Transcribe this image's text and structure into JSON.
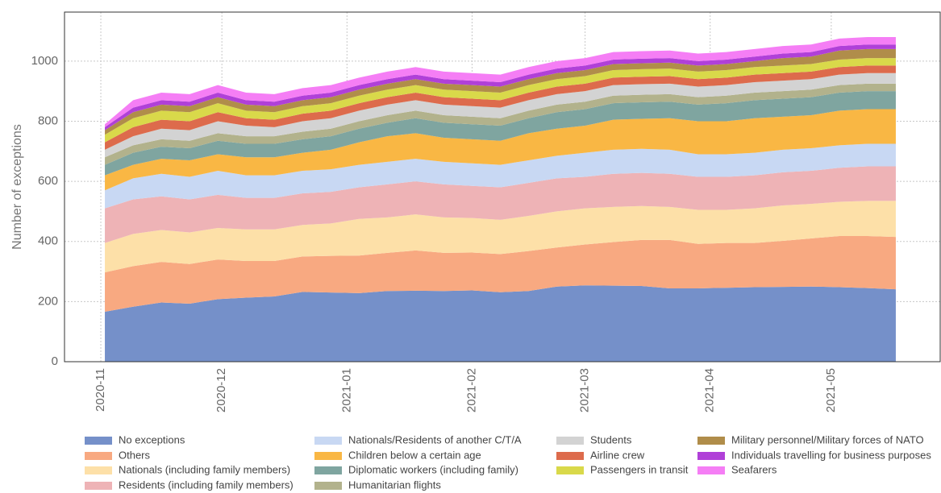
{
  "chart_data": {
    "type": "stacked-area",
    "y_label": "Number of exceptions",
    "x": [
      1,
      8,
      15,
      22,
      29,
      36,
      43,
      50,
      57,
      64,
      71,
      78,
      85,
      92,
      99,
      106,
      113,
      120,
      127,
      134,
      141,
      148,
      155,
      162,
      169,
      176,
      183,
      190,
      197
    ],
    "xlim": [
      -9,
      208
    ],
    "xticks": [
      {
        "value": 0,
        "label": "2020-11"
      },
      {
        "value": 30,
        "label": "2020-12"
      },
      {
        "value": 61,
        "label": "2021-01"
      },
      {
        "value": 92,
        "label": "2021-02"
      },
      {
        "value": 120,
        "label": "2021-03"
      },
      {
        "value": 151,
        "label": "2021-04"
      },
      {
        "value": 181,
        "label": "2021-05"
      }
    ],
    "ylim": [
      0,
      1163
    ],
    "yticks": [
      0,
      200,
      400,
      600,
      800,
      1000
    ],
    "grid": true,
    "legend": "bottom",
    "series": [
      {
        "name": "No exceptions",
        "color": "#7590c9",
        "values": [
          166,
          183,
          197,
          193,
          208,
          213,
          217,
          232,
          230,
          228,
          235,
          236,
          235,
          237,
          231,
          235,
          250,
          254,
          253,
          252,
          244,
          244,
          246,
          248,
          249,
          250,
          248,
          245,
          241
        ]
      },
      {
        "name": "Others",
        "color": "#f8a981",
        "values": [
          131,
          135,
          135,
          132,
          132,
          122,
          118,
          118,
          122,
          125,
          127,
          134,
          127,
          126,
          127,
          133,
          130,
          136,
          145,
          153,
          161,
          148,
          149,
          147,
          153,
          160,
          170,
          173,
          174
        ]
      },
      {
        "name": "Nationals (including family members)",
        "color": "#fde0a8",
        "values": [
          98,
          107,
          106,
          105,
          105,
          105,
          105,
          105,
          108,
          122,
          118,
          120,
          118,
          115,
          114,
          117,
          120,
          120,
          117,
          113,
          110,
          113,
          110,
          115,
          118,
          115,
          114,
          117,
          120
        ]
      },
      {
        "name": "Residents (including family members)",
        "color": "#eeb3b6",
        "values": [
          115,
          115,
          112,
          110,
          110,
          105,
          105,
          105,
          105,
          105,
          110,
          110,
          110,
          107,
          108,
          110,
          110,
          105,
          110,
          110,
          110,
          110,
          110,
          110,
          110,
          110,
          113,
          115,
          115
        ]
      },
      {
        "name": "Nationals/Residents of another C/T/A",
        "color": "#c8d8f3",
        "values": [
          60,
          70,
          75,
          75,
          80,
          75,
          75,
          75,
          75,
          75,
          75,
          75,
          75,
          75,
          75,
          75,
          75,
          80,
          80,
          80,
          80,
          75,
          75,
          75,
          75,
          75,
          75,
          75,
          75
        ]
      },
      {
        "name": "Children below a certain age",
        "color": "#f9b744",
        "values": [
          50,
          45,
          50,
          55,
          55,
          60,
          60,
          60,
          65,
          75,
          85,
          85,
          80,
          80,
          80,
          90,
          90,
          90,
          100,
          100,
          105,
          110,
          110,
          115,
          110,
          110,
          115,
          115,
          115
        ]
      },
      {
        "name": "Diplomatic workers (including family)",
        "color": "#7fa5a0",
        "values": [
          35,
          40,
          40,
          40,
          45,
          45,
          45,
          45,
          45,
          45,
          45,
          50,
          50,
          50,
          50,
          50,
          55,
          55,
          55,
          55,
          55,
          55,
          60,
          60,
          60,
          60,
          60,
          60,
          60
        ]
      },
      {
        "name": "Humanitarian flights",
        "color": "#b2b28c",
        "values": [
          25,
          25,
          25,
          25,
          25,
          25,
          25,
          25,
          25,
          25,
          25,
          25,
          25,
          25,
          25,
          25,
          25,
          25,
          25,
          25,
          25,
          25,
          25,
          25,
          25,
          25,
          25,
          25,
          25
        ]
      },
      {
        "name": "Students",
        "color": "#d3d3d3",
        "values": [
          25,
          30,
          35,
          35,
          40,
          35,
          30,
          35,
          35,
          35,
          35,
          35,
          35,
          35,
          35,
          35,
          35,
          35,
          35,
          35,
          35,
          35,
          35,
          35,
          35,
          35,
          35,
          35,
          35
        ]
      },
      {
        "name": "Airline crew",
        "color": "#dd6b4c",
        "values": [
          25,
          30,
          30,
          30,
          30,
          25,
          25,
          25,
          25,
          25,
          25,
          25,
          25,
          25,
          25,
          25,
          25,
          25,
          25,
          25,
          25,
          25,
          25,
          25,
          25,
          25,
          25,
          25,
          25
        ]
      },
      {
        "name": "Passengers in transit",
        "color": "#d9d94a",
        "values": [
          25,
          30,
          30,
          30,
          30,
          25,
          25,
          25,
          25,
          25,
          25,
          25,
          25,
          25,
          25,
          25,
          25,
          25,
          25,
          25,
          25,
          25,
          25,
          25,
          25,
          25,
          25,
          25,
          25
        ]
      },
      {
        "name": "Military personnel/Military forces of NATO",
        "color": "#b08d4a",
        "values": [
          15,
          20,
          20,
          20,
          20,
          20,
          20,
          20,
          20,
          20,
          20,
          20,
          20,
          20,
          20,
          20,
          20,
          20,
          20,
          20,
          20,
          20,
          20,
          20,
          25,
          25,
          30,
          30,
          30
        ]
      },
      {
        "name": "Individuals travelling for business purposes",
        "color": "#b040d8",
        "values": [
          10,
          15,
          15,
          15,
          15,
          15,
          15,
          15,
          15,
          15,
          15,
          15,
          15,
          15,
          15,
          15,
          15,
          15,
          15,
          15,
          15,
          15,
          15,
          15,
          15,
          15,
          15,
          15,
          15
        ]
      },
      {
        "name": "Seafarers",
        "color": "#f57ef5",
        "values": [
          10,
          25,
          25,
          25,
          25,
          25,
          25,
          25,
          25,
          25,
          25,
          25,
          25,
          25,
          25,
          25,
          25,
          25,
          25,
          25,
          25,
          25,
          25,
          25,
          25,
          25,
          25,
          25,
          25
        ]
      }
    ]
  }
}
